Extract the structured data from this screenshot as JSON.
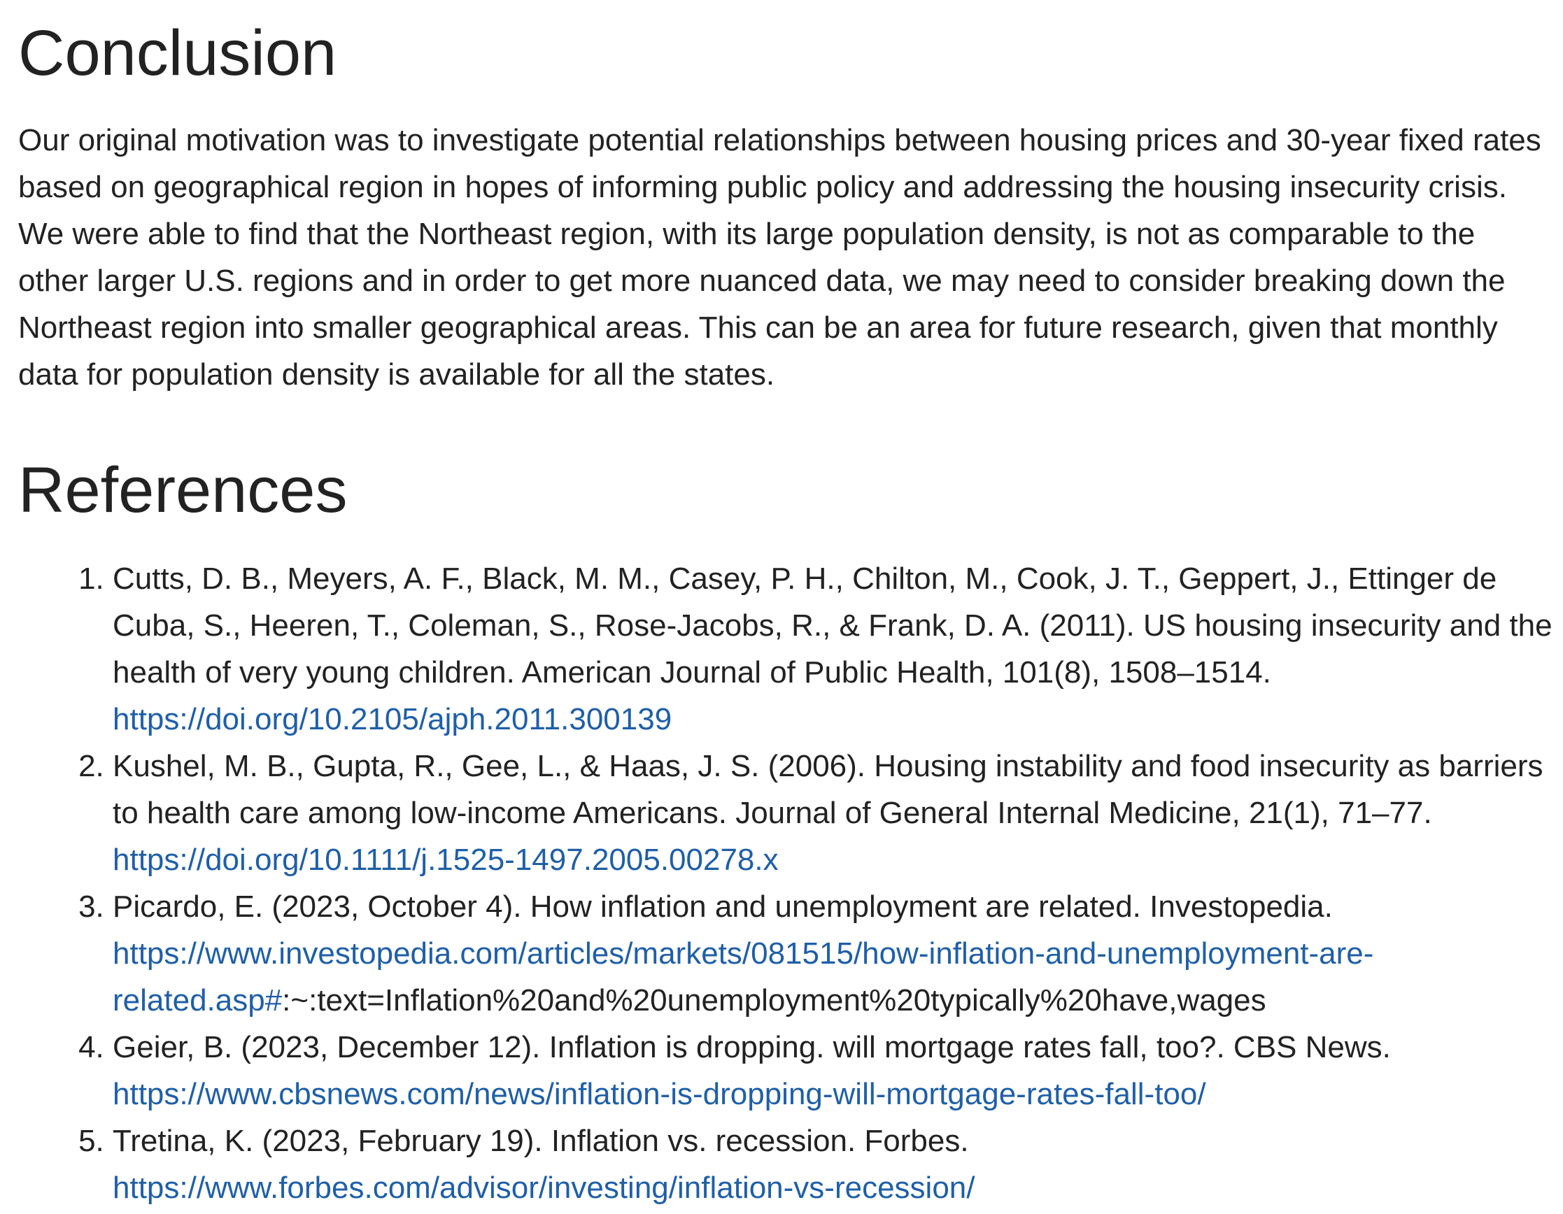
{
  "conclusion": {
    "heading": "Conclusion",
    "paragraph": "Our original motivation was to investigate potential relationships between housing prices and 30-year fixed rates based on geographical region in hopes of informing public policy and addressing the housing insecurity crisis. We were able to find that the Northeast region, with its large population density, is not as comparable to the other larger U.S. regions and in order to get more nuanced data, we may need to consider breaking down the Northeast region into smaller geographical areas. This can be an area for future research, given that monthly data for population density is available for all the states."
  },
  "references": {
    "heading": "References",
    "items": [
      {
        "text": "Cutts, D. B., Meyers, A. F., Black, M. M., Casey, P. H., Chilton, M., Cook, J. T., Geppert, J., Ettinger de Cuba, S., Heeren, T., Coleman, S., Rose-Jacobs, R., & Frank, D. A. (2011). US housing insecurity and the health of very young children. American Journal of Public Health, 101(8), 1508–1514. ",
        "link": "https://doi.org/10.2105/ajph.2011.300139",
        "suffix": ""
      },
      {
        "text": "Kushel, M. B., Gupta, R., Gee, L., & Haas, J. S. (2006). Housing instability and food insecurity as barriers to health care among low-income Americans. Journal of General Internal Medicine, 21(1), 71–77. ",
        "link": "https://doi.org/10.1111/j.1525-1497.2005.00278.x",
        "suffix": ""
      },
      {
        "text": "Picardo, E. (2023, October 4). How inflation and unemployment are related. Investopedia. ",
        "link": "https://www.investopedia.com/articles/markets/081515/how-inflation-and-unemployment-are-related.asp#",
        "suffix": ":~:text=Inflation%20and%20unemployment%20typically%20have,wages"
      },
      {
        "text": "Geier, B. (2023, December 12). Inflation is dropping. will mortgage rates fall, too?. CBS News. ",
        "link": "https://www.cbsnews.com/news/inflation-is-dropping-will-mortgage-rates-fall-too/",
        "suffix": ""
      },
      {
        "text": "Tretina, K. (2023, February 19). Inflation vs. recession. Forbes. ",
        "link": "https://www.forbes.com/advisor/investing/inflation-vs-recession/",
        "suffix": ""
      }
    ]
  },
  "colors": {
    "text": "#222222",
    "link": "#1f5fa8",
    "background": "#ffffff"
  }
}
